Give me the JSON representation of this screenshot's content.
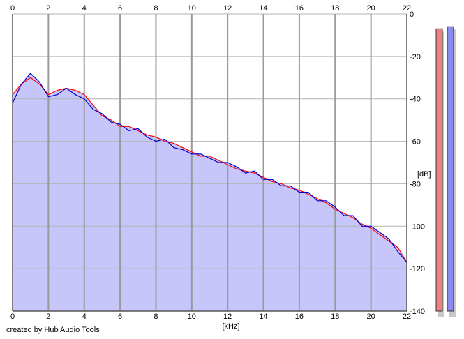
{
  "footer": {
    "credit": "created by Hub Audio Tools"
  },
  "chart_data": {
    "type": "area",
    "xlabel": "[kHz]",
    "ylabel": "[dB]",
    "xlim": [
      0,
      22
    ],
    "ylim": [
      -140,
      0
    ],
    "x_ticks": [
      0,
      2,
      4,
      6,
      8,
      10,
      12,
      14,
      16,
      18,
      20,
      22
    ],
    "y_ticks": [
      0,
      -20,
      -40,
      -60,
      -80,
      -100,
      -120,
      -140
    ],
    "x_tick_labels": [
      "0",
      "2",
      "4",
      "6",
      "8",
      "10",
      "12",
      "14",
      "16",
      "18",
      "20",
      "22"
    ],
    "y_tick_labels": [
      "0",
      "-20",
      "-40",
      "-60",
      "-80",
      "-100",
      "-120",
      "-140"
    ],
    "grid": true,
    "x_axis_top": true,
    "colors": {
      "fill": "#c6c6fb",
      "left_line": "#ff0000",
      "right_line": "#0000cc",
      "left_meter": "#f08080",
      "right_meter": "#8a8af0",
      "meter_shadow": "#c8c8c8"
    },
    "series": [
      {
        "channel": "left",
        "color": "#ff0000",
        "x": [
          0,
          0.5,
          1,
          1.5,
          2,
          2.5,
          3,
          3.5,
          4,
          4.5,
          5,
          5.5,
          6,
          6.5,
          7,
          7.5,
          8,
          8.5,
          9,
          9.5,
          10,
          10.5,
          11,
          11.5,
          12,
          12.5,
          13,
          13.5,
          14,
          14.5,
          15,
          15.5,
          16,
          16.5,
          17,
          17.5,
          18,
          18.5,
          19,
          19.5,
          20,
          20.5,
          21,
          21.5,
          22
        ],
        "values": [
          -38,
          -33,
          -30,
          -33,
          -38,
          -36,
          -35,
          -36,
          -38,
          -43,
          -48,
          -50,
          -53,
          -53,
          -55,
          -57,
          -58,
          -60,
          -61,
          -63,
          -65,
          -67,
          -67,
          -69,
          -71,
          -73,
          -74,
          -75,
          -77,
          -79,
          -80,
          -82,
          -83,
          -85,
          -87,
          -89,
          -92,
          -94,
          -96,
          -99,
          -101,
          -104,
          -107,
          -110,
          -117
        ]
      },
      {
        "channel": "right",
        "color": "#0000cc",
        "x": [
          0,
          0.5,
          1,
          1.5,
          2,
          2.5,
          3,
          3.5,
          4,
          4.5,
          5,
          5.5,
          6,
          6.5,
          7,
          7.5,
          8,
          8.5,
          9,
          9.5,
          10,
          10.5,
          11,
          11.5,
          12,
          12.5,
          13,
          13.5,
          14,
          14.5,
          15,
          15.5,
          16,
          16.5,
          17,
          17.5,
          18,
          18.5,
          19,
          19.5,
          20,
          20.5,
          21,
          21.5,
          22
        ],
        "values": [
          -42,
          -33,
          -28,
          -32,
          -39,
          -38,
          -35,
          -38,
          -40,
          -45,
          -47,
          -51,
          -52,
          -55,
          -54,
          -58,
          -60,
          -59,
          -63,
          -64,
          -66,
          -66,
          -68,
          -70,
          -70,
          -72,
          -75,
          -74,
          -78,
          -78,
          -81,
          -81,
          -84,
          -84,
          -88,
          -88,
          -91,
          -95,
          -95,
          -100,
          -100,
          -103,
          -106,
          -112,
          -117
        ]
      }
    ],
    "meters": [
      {
        "channel": "left",
        "level_db": -7
      },
      {
        "channel": "right",
        "level_db": -6
      }
    ]
  }
}
